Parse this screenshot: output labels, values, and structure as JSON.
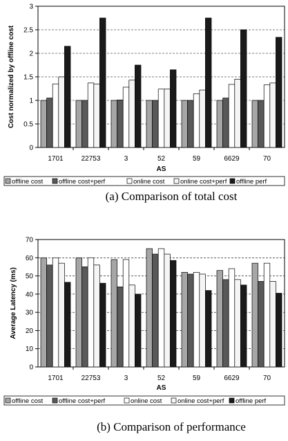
{
  "legend_colors": [
    "#a6a6a6",
    "#595959",
    "#ffffff",
    "#f5f5f5",
    "#1a1a1a"
  ],
  "chart_data": [
    {
      "type": "bar",
      "title": "",
      "caption": "(a) Comparison of total cost",
      "xlabel": "AS",
      "ylabel": "Cost normalized by offline cost",
      "ylim": [
        0,
        3
      ],
      "yticks": [
        "0",
        "0.5",
        "1",
        "1.5",
        "2",
        "2.5",
        "3"
      ],
      "grid": "dashed horizontal",
      "legend_position": "bottom",
      "categories": [
        "1701",
        "22753",
        "3",
        "52",
        "59",
        "6629",
        "70"
      ],
      "series": [
        {
          "name": "offline cost",
          "values": [
            1,
            1,
            1,
            1,
            1,
            1,
            1
          ]
        },
        {
          "name": "offline cost+perf",
          "values": [
            1.05,
            1,
            1.01,
            1,
            1,
            1.05,
            1
          ]
        },
        {
          "name": "online cost",
          "values": [
            1.35,
            1.37,
            1.28,
            1.24,
            1.14,
            1.34,
            1.33
          ]
        },
        {
          "name": "online cost+perf",
          "values": [
            1.5,
            1.35,
            1.43,
            1.24,
            1.22,
            1.45,
            1.37
          ]
        },
        {
          "name": "offline perf",
          "values": [
            2.15,
            2.75,
            1.75,
            1.65,
            2.75,
            2.5,
            2.34
          ]
        }
      ]
    },
    {
      "type": "bar",
      "title": "",
      "caption": "(b) Comparison of performance",
      "xlabel": "AS",
      "ylabel": "Average Latency (ms)",
      "ylim": [
        0,
        70
      ],
      "yticks": [
        "0",
        "10",
        "20",
        "30",
        "40",
        "50",
        "60",
        "70"
      ],
      "grid": "dashed horizontal",
      "legend_position": "bottom",
      "categories": [
        "1701",
        "22753",
        "3",
        "52",
        "59",
        "6629",
        "70"
      ],
      "series": [
        {
          "name": "offline cost",
          "values": [
            60,
            60,
            59,
            65,
            52,
            53,
            57
          ]
        },
        {
          "name": "offline cost+perf",
          "values": [
            56,
            55,
            44,
            62,
            51,
            48,
            47
          ]
        },
        {
          "name": "online cost",
          "values": [
            60,
            60,
            59,
            65,
            52,
            54,
            57
          ]
        },
        {
          "name": "online cost+perf",
          "values": [
            57,
            56,
            45,
            62,
            51,
            48,
            47
          ]
        },
        {
          "name": "offline perf",
          "values": [
            46.5,
            46,
            40,
            58.5,
            42,
            45,
            40.5
          ]
        }
      ]
    }
  ]
}
